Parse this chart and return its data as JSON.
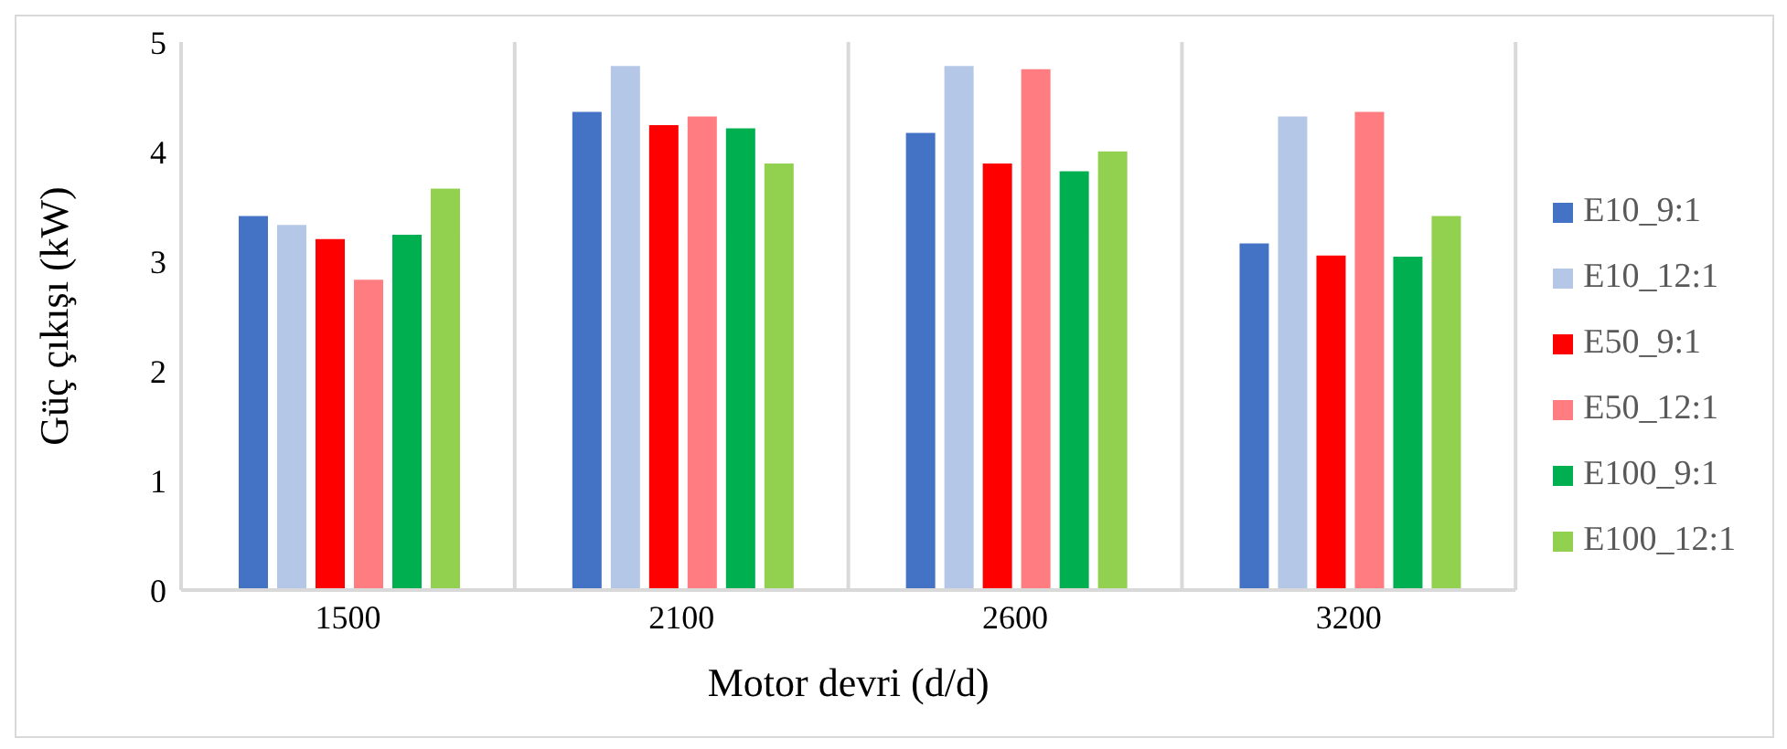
{
  "chart_data": {
    "type": "bar",
    "xlabel": "Motor devri (d/d)",
    "ylabel": "Güç çıkışı (kW)",
    "categories": [
      "1500",
      "2100",
      "2600",
      "3200"
    ],
    "series": [
      {
        "name": "E10_9:1",
        "color": "#4472c4",
        "values": [
          3.42,
          4.37,
          4.18,
          3.17
        ]
      },
      {
        "name": "E10_12:1",
        "color": "#b4c7e7",
        "values": [
          3.34,
          4.79,
          4.79,
          4.33
        ]
      },
      {
        "name": "E50_9:1",
        "color": "#ff0000",
        "values": [
          3.21,
          4.25,
          3.9,
          3.06
        ]
      },
      {
        "name": "E50_12:1",
        "color": "#ff7c80",
        "values": [
          2.84,
          4.33,
          4.76,
          4.37
        ]
      },
      {
        "name": "E100_9:1",
        "color": "#00b050",
        "values": [
          3.25,
          4.22,
          3.83,
          3.05
        ]
      },
      {
        "name": "E100_12:1",
        "color": "#92d050",
        "values": [
          3.67,
          3.9,
          4.01,
          3.42
        ]
      }
    ],
    "ylim": [
      0,
      5
    ],
    "yticks": [
      0,
      1,
      2,
      3,
      4,
      5
    ],
    "grid": "x",
    "legend": "right"
  }
}
